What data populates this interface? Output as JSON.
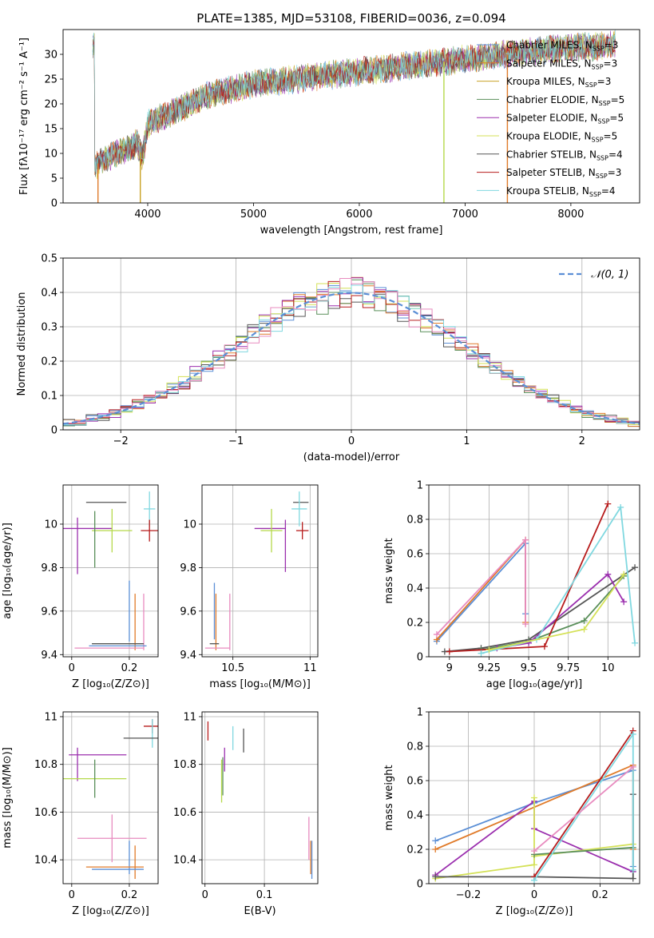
{
  "title": "PLATE=1385, MJD=53108, FIBERID=0036, z=0.094",
  "colors": {
    "Chabrier MILES": "#5b8fd6",
    "Salpeter MILES": "#e07b2a",
    "Kroupa MILES": "#c9a227",
    "Chabrier ELODIE": "#5a8f5a",
    "Salpeter ELODIE": "#9b2fae",
    "Kroupa ELODIE": "#d4e157",
    "Chabrier STELIB": "#555555",
    "Salpeter STELIB": "#b71c1c",
    "Kroupa STELIB": "#80d8e0",
    "pink": "#e88bbf",
    "lime": "#b5d94a",
    "normal": "#5b8fd6"
  },
  "chart_data": [
    {
      "id": "spectrum",
      "type": "line",
      "xlabel": "wavelength [Angstrom, rest frame]",
      "ylabel": "Flux [fλ10⁻¹⁷ erg cm⁻² s⁻¹ A⁻¹]",
      "xlim": [
        3200,
        8650
      ],
      "ylim": [
        0,
        35
      ],
      "xticks": [
        4000,
        5000,
        6000,
        7000,
        8000
      ],
      "yticks": [
        0,
        5,
        10,
        15,
        20,
        25,
        30
      ],
      "legend": [
        {
          "label": "Chabrier MILES, N",
          "sub": "SSP",
          "suffix": "=3",
          "color": "#5b8fd6"
        },
        {
          "label": "Salpeter MILES, N",
          "sub": "SSP",
          "suffix": "=3",
          "color": "#e07b2a"
        },
        {
          "label": "Kroupa MILES, N",
          "sub": "SSP",
          "suffix": "=3",
          "color": "#c9a227"
        },
        {
          "label": "Chabrier ELODIE, N",
          "sub": "SSP",
          "suffix": "=5",
          "color": "#5a8f5a"
        },
        {
          "label": "Salpeter ELODIE, N",
          "sub": "SSP",
          "suffix": "=5",
          "color": "#9b2fae"
        },
        {
          "label": "Kroupa ELODIE, N",
          "sub": "SSP",
          "suffix": "=5",
          "color": "#d4e157"
        },
        {
          "label": "Chabrier STELIB, N",
          "sub": "SSP",
          "suffix": "=4",
          "color": "#555555"
        },
        {
          "label": "Salpeter STELIB, N",
          "sub": "SSP",
          "suffix": "=3",
          "color": "#b71c1c"
        },
        {
          "label": "Kroupa STELIB, N",
          "sub": "SSP",
          "suffix": "=4",
          "color": "#80d8e0"
        }
      ],
      "envelope": [
        [
          3500,
          7.5
        ],
        [
          3600,
          9
        ],
        [
          3700,
          10
        ],
        [
          3800,
          11
        ],
        [
          3900,
          12
        ],
        [
          3950,
          9
        ],
        [
          4000,
          16
        ],
        [
          4100,
          17
        ],
        [
          4200,
          18
        ],
        [
          4300,
          19
        ],
        [
          4400,
          20
        ],
        [
          4500,
          21
        ],
        [
          4600,
          22
        ],
        [
          4700,
          22.5
        ],
        [
          4800,
          23
        ],
        [
          4900,
          23.5
        ],
        [
          5000,
          24
        ],
        [
          5200,
          24.5
        ],
        [
          5400,
          25
        ],
        [
          5600,
          25.5
        ],
        [
          5800,
          26
        ],
        [
          6000,
          26.5
        ],
        [
          6200,
          27
        ],
        [
          6400,
          27.5
        ],
        [
          6600,
          28
        ],
        [
          6800,
          28.5
        ],
        [
          7000,
          29
        ],
        [
          7200,
          29.5
        ],
        [
          7400,
          30
        ],
        [
          7600,
          30.5
        ],
        [
          7800,
          31
        ],
        [
          8000,
          31.5
        ],
        [
          8200,
          31.5
        ],
        [
          8400,
          32
        ]
      ],
      "vertical_drops": [
        {
          "x": 3530,
          "color": "#e07b2a"
        },
        {
          "x": 3930,
          "color": "#c9a227"
        },
        {
          "x": 6800,
          "color": "#b5d94a"
        },
        {
          "x": 7400,
          "color": "#e07b2a"
        }
      ]
    },
    {
      "id": "residual-histogram",
      "type": "line",
      "xlabel": "(data-model)/error",
      "ylabel": "Normed distribution",
      "xlim": [
        -2.5,
        2.5
      ],
      "ylim": [
        0,
        0.5
      ],
      "xticks": [
        -2,
        -1,
        0,
        1,
        2
      ],
      "yticks": [
        0.0,
        0.1,
        0.2,
        0.3,
        0.4,
        0.5
      ],
      "legend": [
        {
          "label": "𝒩(0, 1)",
          "color": "#5b8fd6",
          "style": "dashed"
        }
      ],
      "bin_width": 0.1,
      "bin_start": -2.5,
      "series_colors": [
        "#5b8fd6",
        "#e07b2a",
        "#5a8f5a",
        "#9b2fae",
        "#d4e157",
        "#555555",
        "#b71c1c",
        "#80d8e0",
        "#e88bbf"
      ]
    },
    {
      "id": "age-vs-Z",
      "type": "errorbar",
      "xlabel": "Z [log₁₀(Z/Z⊙)]",
      "ylabel": "age  [log₁₀(age/yr)]",
      "xlim": [
        -0.03,
        0.3
      ],
      "ylim": [
        9.39,
        10.18
      ],
      "xticks": [
        0.0,
        0.2
      ],
      "yticks": [
        9.4,
        9.6,
        9.8,
        10.0
      ],
      "points": [
        {
          "x": 0.12,
          "xerr": 0.07,
          "y": 10.1,
          "yerr": 0.0,
          "color": "#555555"
        },
        {
          "x": 0.27,
          "xerr": 0.02,
          "y": 10.07,
          "yerr": 0.08,
          "color": "#80d8e0"
        },
        {
          "x": 0.04,
          "xerr": 0.1,
          "y": 9.98,
          "yerr": 0.0,
          "color": "#9b2fae"
        },
        {
          "x": 0.14,
          "xerr": 0.07,
          "y": 9.97,
          "yerr": 0.1,
          "color": "#b5d94a"
        },
        {
          "x": 0.27,
          "xerr": 0.03,
          "y": 9.97,
          "yerr": 0.05,
          "color": "#b71c1c"
        },
        {
          "x": 0.02,
          "xerr": 0.0,
          "y": 9.9,
          "yerr": 0.13,
          "color": "#9b2fae"
        },
        {
          "x": 0.08,
          "xerr": 0.0,
          "y": 9.93,
          "yerr": 0.13,
          "color": "#5a8f5a"
        },
        {
          "x": 0.2,
          "xerr": 0.0,
          "y": 9.6,
          "yerr": 0.14,
          "color": "#5b8fd6"
        },
        {
          "x": 0.22,
          "xerr": 0.0,
          "y": 9.55,
          "yerr": 0.13,
          "color": "#e07b2a"
        },
        {
          "x": 0.25,
          "xerr": 0.0,
          "y": 9.55,
          "yerr": 0.13,
          "color": "#e88bbf"
        },
        {
          "x": 0.16,
          "xerr": 0.09,
          "y": 9.45,
          "yerr": 0.0,
          "color": "#555555"
        },
        {
          "x": 0.16,
          "xerr": 0.1,
          "y": 9.44,
          "yerr": 0.0,
          "color": "#5b8fd6"
        },
        {
          "x": 0.13,
          "xerr": 0.12,
          "y": 9.43,
          "yerr": 0.0,
          "color": "#e88bbf"
        }
      ]
    },
    {
      "id": "age-vs-mass",
      "type": "errorbar",
      "xlabel": "mass [log₁₀(M/M⊙)]",
      "ylabel": "",
      "xlim": [
        10.3,
        11.05
      ],
      "ylim": [
        9.39,
        10.18
      ],
      "xticks": [
        10.5,
        11.0
      ],
      "yticks": [
        9.4,
        9.6,
        9.8,
        10.0
      ],
      "points": [
        {
          "x": 10.94,
          "xerr": 0.05,
          "y": 10.1,
          "yerr": 0.0,
          "color": "#555555"
        },
        {
          "x": 10.93,
          "xerr": 0.05,
          "y": 10.07,
          "yerr": 0.08,
          "color": "#80d8e0"
        },
        {
          "x": 10.74,
          "xerr": 0.1,
          "y": 9.98,
          "yerr": 0.0,
          "color": "#9b2fae"
        },
        {
          "x": 10.75,
          "xerr": 0.07,
          "y": 9.97,
          "yerr": 0.1,
          "color": "#b5d94a"
        },
        {
          "x": 10.95,
          "xerr": 0.04,
          "y": 9.97,
          "yerr": 0.04,
          "color": "#b71c1c"
        },
        {
          "x": 10.84,
          "xerr": 0.0,
          "y": 9.9,
          "yerr": 0.12,
          "color": "#9b2fae"
        },
        {
          "x": 10.38,
          "xerr": 0.0,
          "y": 9.6,
          "yerr": 0.13,
          "color": "#5b8fd6"
        },
        {
          "x": 10.39,
          "xerr": 0.0,
          "y": 9.55,
          "yerr": 0.13,
          "color": "#e07b2a"
        },
        {
          "x": 10.48,
          "xerr": 0.0,
          "y": 9.55,
          "yerr": 0.13,
          "color": "#e88bbf"
        },
        {
          "x": 10.38,
          "xerr": 0.03,
          "y": 9.45,
          "yerr": 0.0,
          "color": "#555555"
        },
        {
          "x": 10.4,
          "xerr": 0.08,
          "y": 9.43,
          "yerr": 0.0,
          "color": "#e88bbf"
        }
      ]
    },
    {
      "id": "massweight-vs-age",
      "type": "line",
      "xlabel": "age  [log₁₀(age/yr)]",
      "ylabel": "mass weight",
      "xlim": [
        8.87,
        10.2
      ],
      "ylim": [
        0,
        1.0
      ],
      "xticks": [
        9.0,
        9.25,
        9.5,
        9.75,
        10.0
      ],
      "yticks": [
        0.0,
        0.2,
        0.4,
        0.6,
        0.8,
        1.0
      ],
      "series": [
        {
          "color": "#5b8fd6",
          "points": [
            [
              8.92,
              0.09
            ],
            [
              9.48,
              0.66
            ],
            [
              9.48,
              0.25
            ]
          ]
        },
        {
          "color": "#e07b2a",
          "points": [
            [
              8.92,
              0.1
            ],
            [
              9.48,
              0.68
            ],
            [
              9.48,
              0.2
            ]
          ]
        },
        {
          "color": "#e88bbf",
          "points": [
            [
              8.92,
              0.13
            ],
            [
              9.48,
              0.68
            ],
            [
              9.48,
              0.19
            ]
          ]
        },
        {
          "color": "#555555",
          "points": [
            [
              8.97,
              0.03
            ],
            [
              9.2,
              0.05
            ],
            [
              9.5,
              0.1
            ],
            [
              10.17,
              0.52
            ]
          ]
        },
        {
          "color": "#5a8f5a",
          "points": [
            [
              9.2,
              0.04
            ],
            [
              9.5,
              0.09
            ],
            [
              9.85,
              0.21
            ],
            [
              10.1,
              0.47
            ]
          ]
        },
        {
          "color": "#9b2fae",
          "points": [
            [
              9.3,
              0.05
            ],
            [
              9.5,
              0.08
            ],
            [
              10.0,
              0.48
            ],
            [
              10.1,
              0.32
            ]
          ]
        },
        {
          "color": "#b71c1c",
          "points": [
            [
              9.0,
              0.03
            ],
            [
              9.6,
              0.06
            ],
            [
              10.0,
              0.89
            ]
          ]
        },
        {
          "color": "#80d8e0",
          "points": [
            [
              9.2,
              0.02
            ],
            [
              9.55,
              0.1
            ],
            [
              10.08,
              0.87
            ],
            [
              10.17,
              0.08
            ]
          ]
        },
        {
          "color": "#d4e157",
          "points": [
            [
              9.25,
              0.04
            ],
            [
              9.85,
              0.16
            ],
            [
              10.1,
              0.48
            ]
          ]
        }
      ]
    },
    {
      "id": "mass-vs-Z",
      "type": "errorbar",
      "xlabel": "Z [log₁₀(Z/Z⊙)]",
      "ylabel": "mass [log₁₀(M/M⊙)]",
      "xlim": [
        -0.03,
        0.3
      ],
      "ylim": [
        10.3,
        11.02
      ],
      "xticks": [
        0.0,
        0.2
      ],
      "yticks": [
        10.4,
        10.6,
        10.8,
        11.0
      ],
      "points": [
        {
          "x": 0.28,
          "xerr": 0.03,
          "y": 10.96,
          "yerr": 0.03,
          "color": "#b71c1c"
        },
        {
          "x": 0.28,
          "xerr": 0.0,
          "y": 10.93,
          "yerr": 0.06,
          "color": "#80d8e0"
        },
        {
          "x": 0.24,
          "xerr": 0.06,
          "y": 10.91,
          "yerr": 0.0,
          "color": "#555555"
        },
        {
          "x": 0.09,
          "xerr": 0.1,
          "y": 10.84,
          "yerr": 0.0,
          "color": "#9b2fae"
        },
        {
          "x": 0.02,
          "xerr": 0.0,
          "y": 10.8,
          "yerr": 0.07,
          "color": "#9b2fae"
        },
        {
          "x": 0.08,
          "xerr": 0.11,
          "y": 10.74,
          "yerr": 0.0,
          "color": "#b5d94a"
        },
        {
          "x": 0.08,
          "xerr": 0.0,
          "y": 10.74,
          "yerr": 0.08,
          "color": "#5a8f5a"
        },
        {
          "x": 0.14,
          "xerr": 0.12,
          "y": 10.49,
          "yerr": 0.1,
          "color": "#e88bbf"
        },
        {
          "x": 0.2,
          "xerr": 0.0,
          "y": 10.41,
          "yerr": 0.07,
          "color": "#5b8fd6"
        },
        {
          "x": 0.15,
          "xerr": 0.1,
          "y": 10.37,
          "yerr": 0.0,
          "color": "#e07b2a"
        },
        {
          "x": 0.22,
          "xerr": 0.0,
          "y": 10.39,
          "yerr": 0.07,
          "color": "#e07b2a"
        },
        {
          "x": 0.16,
          "xerr": 0.09,
          "y": 10.36,
          "yerr": 0.0,
          "color": "#5b8fd6"
        }
      ]
    },
    {
      "id": "mass-vs-EBV",
      "type": "errorbar",
      "xlabel": "E(B-V)",
      "ylabel": "",
      "xlim": [
        -0.005,
        0.19
      ],
      "ylim": [
        10.3,
        11.02
      ],
      "xticks": [
        0.0,
        0.1
      ],
      "yticks": [
        10.4,
        10.6,
        10.8,
        11.0
      ],
      "points": [
        {
          "x": 0.005,
          "xerr": 0.0,
          "y": 10.94,
          "yerr": 0.04,
          "color": "#b71c1c"
        },
        {
          "x": 0.047,
          "xerr": 0.0,
          "y": 10.91,
          "yerr": 0.05,
          "color": "#80d8e0"
        },
        {
          "x": 0.065,
          "xerr": 0.0,
          "y": 10.9,
          "yerr": 0.05,
          "color": "#555555"
        },
        {
          "x": 0.033,
          "xerr": 0.0,
          "y": 10.82,
          "yerr": 0.05,
          "color": "#9b2fae"
        },
        {
          "x": 0.03,
          "xerr": 0.0,
          "y": 10.75,
          "yerr": 0.08,
          "color": "#5a8f5a"
        },
        {
          "x": 0.028,
          "xerr": 0.0,
          "y": 10.73,
          "yerr": 0.09,
          "color": "#b5d94a"
        },
        {
          "x": 0.175,
          "xerr": 0.0,
          "y": 10.49,
          "yerr": 0.09,
          "color": "#e88bbf"
        },
        {
          "x": 0.178,
          "xerr": 0.0,
          "y": 10.41,
          "yerr": 0.07,
          "color": "#e07b2a"
        },
        {
          "x": 0.18,
          "xerr": 0.0,
          "y": 10.4,
          "yerr": 0.08,
          "color": "#5b8fd6"
        }
      ]
    },
    {
      "id": "massweight-vs-Z",
      "type": "line",
      "xlabel": "Z [log₁₀(Z/Z⊙)]",
      "ylabel": "mass weight",
      "xlim": [
        -0.32,
        0.32
      ],
      "ylim": [
        0,
        1.0
      ],
      "xticks": [
        -0.2,
        0.0,
        0.2
      ],
      "yticks": [
        0.0,
        0.2,
        0.4,
        0.6,
        0.8,
        1.0
      ],
      "series": [
        {
          "color": "#5b8fd6",
          "points": [
            [
              -0.3,
              0.25
            ],
            [
              0.0,
              0.47
            ],
            [
              0.3,
              0.66
            ],
            [
              0.3,
              0.1
            ]
          ]
        },
        {
          "color": "#e07b2a",
          "points": [
            [
              -0.3,
              0.2
            ],
            [
              0.3,
              0.69
            ],
            [
              0.3,
              0.2
            ]
          ]
        },
        {
          "color": "#9b2fae",
          "points": [
            [
              -0.3,
              0.05
            ],
            [
              0.0,
              0.48
            ],
            [
              0.0,
              0.32
            ],
            [
              0.3,
              0.07
            ]
          ]
        },
        {
          "color": "#d4e157",
          "points": [
            [
              -0.3,
              0.03
            ],
            [
              0.0,
              0.11
            ],
            [
              0.0,
              0.5
            ],
            [
              0.0,
              0.16
            ],
            [
              0.3,
              0.23
            ]
          ]
        },
        {
          "color": "#555555",
          "points": [
            [
              -0.3,
              0.04
            ],
            [
              0.0,
              0.04
            ],
            [
              0.3,
              0.03
            ],
            [
              0.3,
              0.52
            ]
          ]
        },
        {
          "color": "#5a8f5a",
          "points": [
            [
              0.0,
              0.17
            ],
            [
              0.3,
              0.21
            ]
          ]
        },
        {
          "color": "#b71c1c",
          "points": [
            [
              0.0,
              0.04
            ],
            [
              0.3,
              0.89
            ]
          ]
        },
        {
          "color": "#80d8e0",
          "points": [
            [
              0.0,
              0.02
            ],
            [
              0.3,
              0.87
            ],
            [
              0.3,
              0.08
            ]
          ]
        },
        {
          "color": "#e88bbf",
          "points": [
            [
              0.0,
              0.19
            ],
            [
              0.3,
              0.68
            ]
          ]
        }
      ]
    }
  ]
}
